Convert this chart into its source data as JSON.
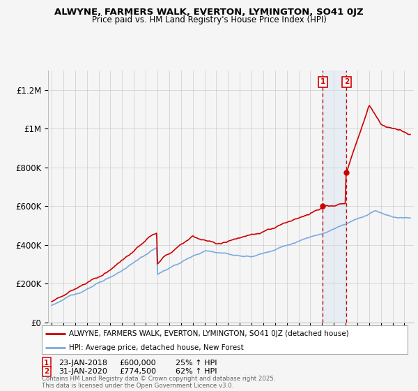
{
  "title": "ALWYNE, FARMERS WALK, EVERTON, LYMINGTON, SO41 0JZ",
  "subtitle": "Price paid vs. HM Land Registry's House Price Index (HPI)",
  "ylabel_ticks": [
    "£0",
    "£200K",
    "£400K",
    "£600K",
    "£800K",
    "£1M",
    "£1.2M"
  ],
  "ytick_values": [
    0,
    200000,
    400000,
    600000,
    800000,
    1000000,
    1200000
  ],
  "ylim": [
    0,
    1300000
  ],
  "xlim_start": 1994.7,
  "xlim_end": 2025.8,
  "sale1_x": 2018.06,
  "sale1_y": 600000,
  "sale2_x": 2020.08,
  "sale2_y": 774500,
  "sale1_date": "23-JAN-2018",
  "sale1_price": "£600,000",
  "sale1_hpi": "25% ↑ HPI",
  "sale2_date": "31-JAN-2020",
  "sale2_price": "£774,500",
  "sale2_hpi": "62% ↑ HPI",
  "legend_label_red": "ALWYNE, FARMERS WALK, EVERTON, LYMINGTON, SO41 0JZ (detached house)",
  "legend_label_blue": "HPI: Average price, detached house, New Forest",
  "footer": "Contains HM Land Registry data © Crown copyright and database right 2025.\nThis data is licensed under the Open Government Licence v3.0.",
  "red_color": "#cc0000",
  "blue_color": "#7aaadd",
  "vline_color": "#cc0000",
  "shade_color": "#cfe0f0",
  "background_color": "#f5f5f5",
  "grid_color": "#cccccc"
}
